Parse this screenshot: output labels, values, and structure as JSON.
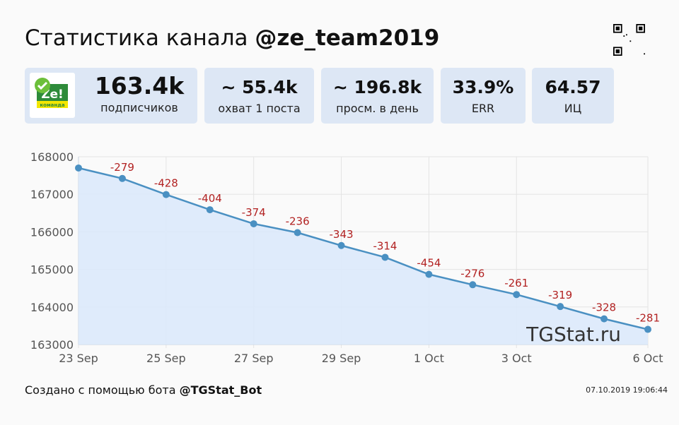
{
  "header": {
    "title_prefix": "Статистика канала",
    "channel": "@ze_team2019"
  },
  "logo": {
    "text": "Ze!",
    "subtext": "команда"
  },
  "stats": [
    {
      "value": "163.4k",
      "label": "подписчиков"
    },
    {
      "value": "~ 55.4k",
      "label": "охват 1 поста"
    },
    {
      "value": "~ 196.8k",
      "label": "просм. в день"
    },
    {
      "value": "33.9%",
      "label": "ERR"
    },
    {
      "value": "64.57",
      "label": "ИЦ"
    }
  ],
  "chart_data": {
    "type": "area",
    "x": [
      "23 Sep",
      "24 Sep",
      "25 Sep",
      "26 Sep",
      "27 Sep",
      "28 Sep",
      "29 Sep",
      "30 Sep",
      "1 Oct",
      "2 Oct",
      "3 Oct",
      "4 Oct",
      "5 Oct",
      "6 Oct"
    ],
    "values": [
      167700,
      167421,
      166993,
      166589,
      166215,
      165979,
      165636,
      165322,
      164868,
      164592,
      164331,
      164012,
      163684,
      163403
    ],
    "data_labels": [
      "",
      "-279",
      "-428",
      "-404",
      "-374",
      "-236",
      "-343",
      "-314",
      "-454",
      "-276",
      "-261",
      "-319",
      "-328",
      "-281"
    ],
    "x_ticks": [
      "23 Sep",
      "25 Sep",
      "27 Sep",
      "29 Sep",
      "1 Oct",
      "3 Oct",
      "6 Oct"
    ],
    "y_ticks": [
      163000,
      164000,
      165000,
      166000,
      167000,
      168000
    ],
    "ylim": [
      163000,
      168000
    ],
    "grid": true,
    "line_color": "#4a90c2",
    "fill_color": "#dce9fb",
    "label_color": "#b22222",
    "watermark": "TGStat.ru"
  },
  "footer": {
    "prefix": "Создано с помощью бота",
    "bot": "@TGStat_Bot",
    "timestamp": "07.10.2019 19:06:44"
  }
}
